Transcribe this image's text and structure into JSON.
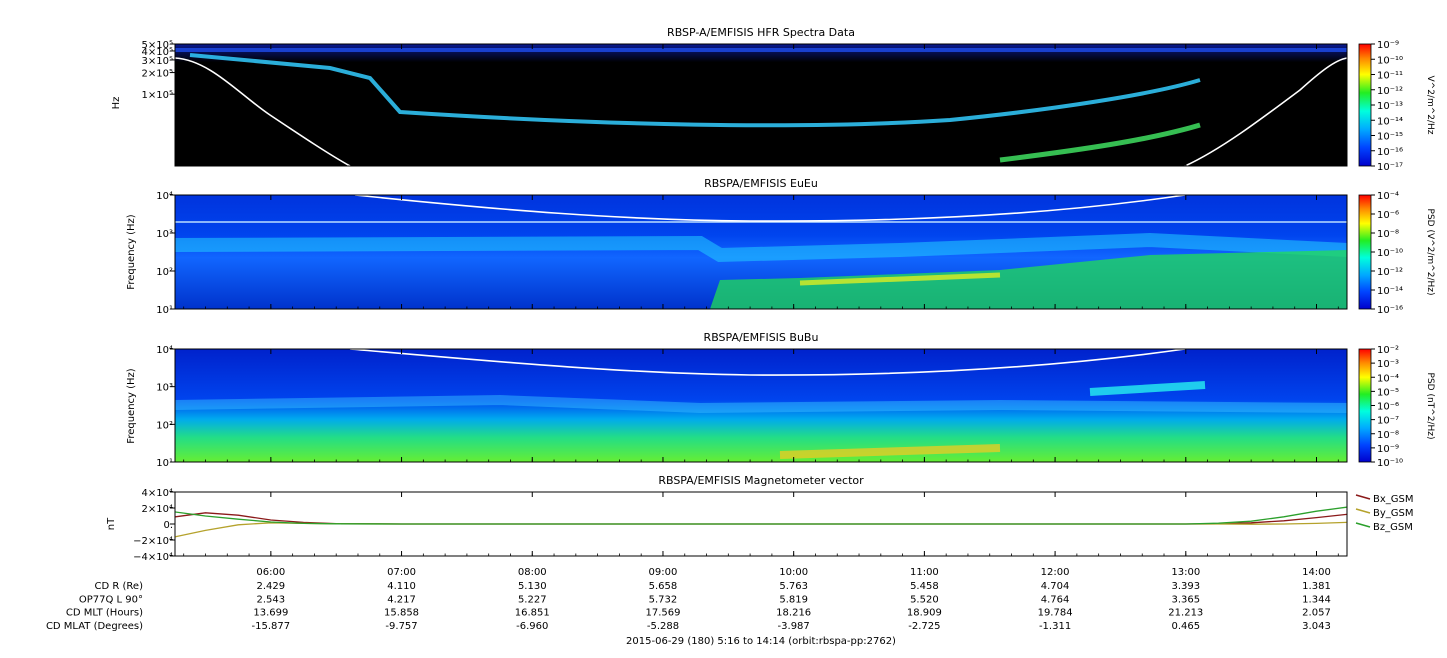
{
  "chart_data": [
    {
      "type": "heatmap",
      "title": "RBSP-A/EMFISIS  HFR Spectra Data",
      "ylabel": "Hz",
      "yscale": "log",
      "ylim": [
        10000,
        500000
      ],
      "ytick_labels": [
        "5×10⁵",
        "4×10⁵",
        "3×10⁵",
        "2×10⁵",
        "1×10⁵"
      ],
      "ytick_values": [
        500000,
        400000,
        300000,
        200000,
        100000
      ],
      "colorbar_label": "V^2/m^2/Hz",
      "colorbar_labels": [
        "10⁻⁹",
        "10⁻¹⁰",
        "10⁻¹¹",
        "10⁻¹²",
        "10⁻¹³",
        "10⁻¹⁴",
        "10⁻¹⁵",
        "10⁻¹⁶",
        "10⁻¹⁷"
      ],
      "colorbar_range": [
        -17,
        -9
      ]
    },
    {
      "type": "heatmap",
      "title": "RBSPA/EMFISIS  EuEu",
      "ylabel": "Frequency (Hz)",
      "yscale": "log",
      "ylim": [
        10,
        10000
      ],
      "ytick_labels": [
        "10⁴",
        "10³",
        "10²",
        "10¹"
      ],
      "ytick_values": [
        10000,
        1000,
        100,
        10
      ],
      "colorbar_label": "PSD (V^2/m^2/Hz)",
      "colorbar_labels": [
        "10⁻⁴",
        "10⁻⁶",
        "10⁻⁸",
        "10⁻¹⁰",
        "10⁻¹²",
        "10⁻¹⁴",
        "10⁻¹⁶"
      ],
      "colorbar_range": [
        -16,
        -4
      ]
    },
    {
      "type": "heatmap",
      "title": "RBSPA/EMFISIS  BuBu",
      "ylabel": "Frequency (Hz)",
      "yscale": "log",
      "ylim": [
        10,
        10000
      ],
      "ytick_labels": [
        "10⁴",
        "10³",
        "10²",
        "10¹"
      ],
      "ytick_values": [
        10000,
        1000,
        100,
        10
      ],
      "colorbar_label": "PSD (nT^2/Hz)",
      "colorbar_labels": [
        "10⁻²",
        "10⁻³",
        "10⁻⁴",
        "10⁻⁵",
        "10⁻⁶",
        "10⁻⁷",
        "10⁻⁸",
        "10⁻⁹",
        "10⁻¹⁰"
      ],
      "colorbar_range": [
        -10,
        -2
      ]
    },
    {
      "type": "line",
      "title": "RBSPA/EMFISIS  Magnetometer vector",
      "ylabel": "nT",
      "ylim": [
        -40000,
        40000
      ],
      "ytick_labels": [
        "4×10⁴",
        "2×10⁴",
        "0.",
        "−2×10⁴",
        "−4×10⁴"
      ],
      "ytick_values": [
        40000,
        20000,
        0,
        -20000,
        -40000
      ],
      "x": [
        5.27,
        5.5,
        5.75,
        6.0,
        6.25,
        6.5,
        7.0,
        8.0,
        9.0,
        10.0,
        11.0,
        12.0,
        13.0,
        13.25,
        13.5,
        13.75,
        14.0,
        14.23
      ],
      "series": [
        {
          "name": "Bx_GSM",
          "color": "#8b1a1a",
          "values": [
            9000,
            14000,
            11000,
            5000,
            2000,
            500,
            0,
            0,
            0,
            0,
            0,
            0,
            0,
            300,
            1500,
            4000,
            8000,
            12000
          ]
        },
        {
          "name": "By_GSM",
          "color": "#b5a22c",
          "values": [
            -16000,
            -8000,
            -1000,
            1500,
            800,
            200,
            0,
            0,
            0,
            0,
            0,
            0,
            0,
            0,
            -200,
            0,
            800,
            2000
          ]
        },
        {
          "name": "Bz_GSM",
          "color": "#2ca02c",
          "values": [
            15000,
            10000,
            6000,
            2500,
            800,
            200,
            0,
            0,
            0,
            0,
            0,
            0,
            0,
            1000,
            3500,
            9000,
            16000,
            21000
          ]
        }
      ]
    }
  ],
  "x_axis": {
    "start_hour": 5.2667,
    "end_hour": 14.2333,
    "ticks": [
      "06:00",
      "07:00",
      "08:00",
      "09:00",
      "10:00",
      "11:00",
      "12:00",
      "13:00",
      "14:00"
    ],
    "tick_hours": [
      6,
      7,
      8,
      9,
      10,
      11,
      12,
      13,
      14
    ]
  },
  "ephemeris": [
    {
      "label": "CD R (Re)",
      "values": [
        "2.429",
        "4.110",
        "5.130",
        "5.658",
        "5.763",
        "5.458",
        "4.704",
        "3.393",
        "1.381"
      ]
    },
    {
      "label": "OP77Q L 90°",
      "values": [
        "2.543",
        "4.217",
        "5.227",
        "5.732",
        "5.819",
        "5.520",
        "4.764",
        "3.365",
        "1.344"
      ]
    },
    {
      "label": "CD MLT (Hours)",
      "values": [
        "13.699",
        "15.858",
        "16.851",
        "17.569",
        "18.216",
        "18.909",
        "19.784",
        "21.213",
        "2.057"
      ]
    },
    {
      "label": "CD MLAT (Degrees)",
      "values": [
        "-15.877",
        "-9.757",
        "-6.960",
        "-5.288",
        "-3.987",
        "-2.725",
        "-1.311",
        "0.465",
        "3.043"
      ]
    }
  ],
  "footer": "2015-06-29 (180) 5:16 to 14:14 (orbit:rbspa-pp:2762)"
}
